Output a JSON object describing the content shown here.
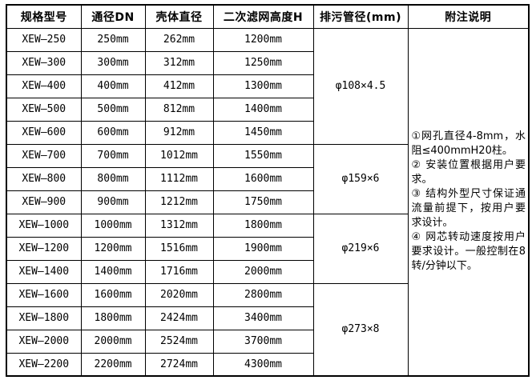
{
  "colors": {
    "background": "#ffffff",
    "border": "#000000",
    "text": "#000000"
  },
  "table": {
    "columns": [
      "规格型号",
      "通径DN",
      "壳体直径",
      "二次滤网高度H",
      "排污管径(mm)",
      "附注说明"
    ],
    "rows": [
      {
        "model": "XEW—250",
        "dn": "250mm",
        "shell": "262mm",
        "height": "1200mm"
      },
      {
        "model": "XEW—300",
        "dn": "300mm",
        "shell": "312mm",
        "height": "1250mm"
      },
      {
        "model": "XEW—400",
        "dn": "400mm",
        "shell": "412mm",
        "height": "1300mm"
      },
      {
        "model": "XEW—500",
        "dn": "500mm",
        "shell": "812mm",
        "height": "1400mm"
      },
      {
        "model": "XEW—600",
        "dn": "600mm",
        "shell": "912mm",
        "height": "1450mm"
      },
      {
        "model": "XEW—700",
        "dn": "700mm",
        "shell": "1012mm",
        "height": "1550mm"
      },
      {
        "model": "XEW—800",
        "dn": "800mm",
        "shell": "1112mm",
        "height": "1600mm"
      },
      {
        "model": "XEW—900",
        "dn": "900mm",
        "shell": "1212mm",
        "height": "1750mm"
      },
      {
        "model": "XEW—1000",
        "dn": "1000mm",
        "shell": "1312mm",
        "height": "1800mm"
      },
      {
        "model": "XEW—1200",
        "dn": "1200mm",
        "shell": "1516mm",
        "height": "1900mm"
      },
      {
        "model": "XEW—1400",
        "dn": "1400mm",
        "shell": "1716mm",
        "height": "2000mm"
      },
      {
        "model": "XEW—1600",
        "dn": "1600mm",
        "shell": "2020mm",
        "height": "2800mm"
      },
      {
        "model": "XEW—1800",
        "dn": "1800mm",
        "shell": "2424mm",
        "height": "3400mm"
      },
      {
        "model": "XEW—2000",
        "dn": "2000mm",
        "shell": "2524mm",
        "height": "3700mm"
      },
      {
        "model": "XEW—2200",
        "dn": "2200mm",
        "shell": "2724mm",
        "height": "4300mm"
      }
    ],
    "drain_pipe_groups": [
      {
        "label": "φ108×4.5",
        "row_span": 5
      },
      {
        "label": "φ159×6",
        "row_span": 3
      },
      {
        "label": "φ219×6",
        "row_span": 3
      },
      {
        "label": "φ273×8",
        "row_span": 4
      }
    ]
  },
  "notes": {
    "items": [
      "①网孔直径4-8mm，水阻≤400mmH20柱。",
      "② 安装位置根据用户要求。",
      "③ 结构外型尺寸保证通流量前提下，按用户要求设计。",
      "④ 网芯转动速度按用户要求设计。一般控制在8转/分钟以下。"
    ]
  }
}
